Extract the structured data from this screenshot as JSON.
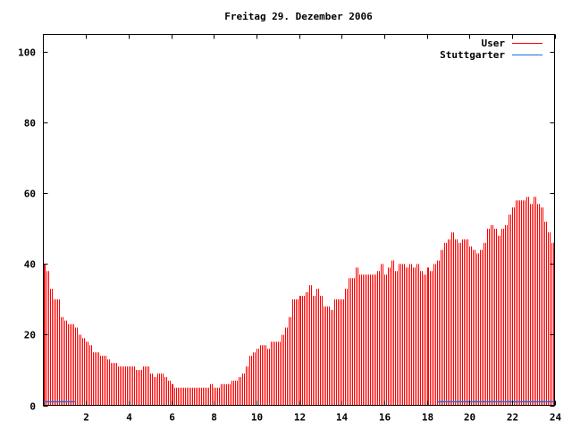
{
  "chart_data": {
    "type": "bar",
    "title": "Freitag 29. Dezember 2006",
    "xlabel": "",
    "ylabel": "",
    "xlim": [
      0,
      24
    ],
    "ylim": [
      0,
      105
    ],
    "x_ticks": [
      2,
      4,
      6,
      8,
      10,
      12,
      14,
      16,
      18,
      20,
      22,
      24
    ],
    "y_ticks": [
      0,
      20,
      40,
      60,
      80,
      100
    ],
    "grid": false,
    "legend_position": "top-right",
    "x_step_hours": 0.1667,
    "series": [
      {
        "name": "User",
        "style": "impulses",
        "color": "#ff0000",
        "values": [
          40,
          38,
          33,
          30,
          30,
          25,
          24,
          23,
          23,
          22,
          20,
          19,
          18,
          17,
          15,
          15,
          14,
          14,
          13,
          12,
          12,
          11,
          11,
          11,
          11,
          11,
          10,
          10,
          11,
          11,
          9,
          8,
          9,
          9,
          8,
          7,
          6,
          5,
          5,
          5,
          5,
          5,
          5,
          5,
          5,
          5,
          5,
          6,
          5,
          5,
          6,
          6,
          6,
          7,
          7,
          8,
          9,
          11,
          14,
          15,
          16,
          17,
          17,
          16,
          18,
          18,
          18,
          20,
          22,
          25,
          30,
          30,
          31,
          31,
          32,
          34,
          31,
          33,
          31,
          28,
          28,
          27,
          30,
          30,
          30,
          33,
          36,
          36,
          39,
          37,
          37,
          37,
          37,
          37,
          38,
          40,
          37,
          39,
          41,
          38,
          40,
          40,
          39,
          40,
          39,
          40,
          38,
          37,
          39,
          38,
          40,
          41,
          44,
          46,
          47,
          49,
          47,
          46,
          47,
          47,
          45,
          44,
          43,
          44,
          46,
          50,
          51,
          50,
          48,
          50,
          51,
          54,
          56,
          58,
          58,
          58,
          59,
          57,
          59,
          57,
          56,
          52,
          49,
          46
        ]
      },
      {
        "name": "Stuttgarter",
        "style": "lines",
        "color": "#1a6fe0",
        "segments": [
          {
            "x": [
              0,
              1.5
            ],
            "y": [
              1,
              1
            ]
          },
          {
            "x": [
              18.5,
              24
            ],
            "y": [
              1,
              1
            ]
          }
        ]
      }
    ]
  }
}
